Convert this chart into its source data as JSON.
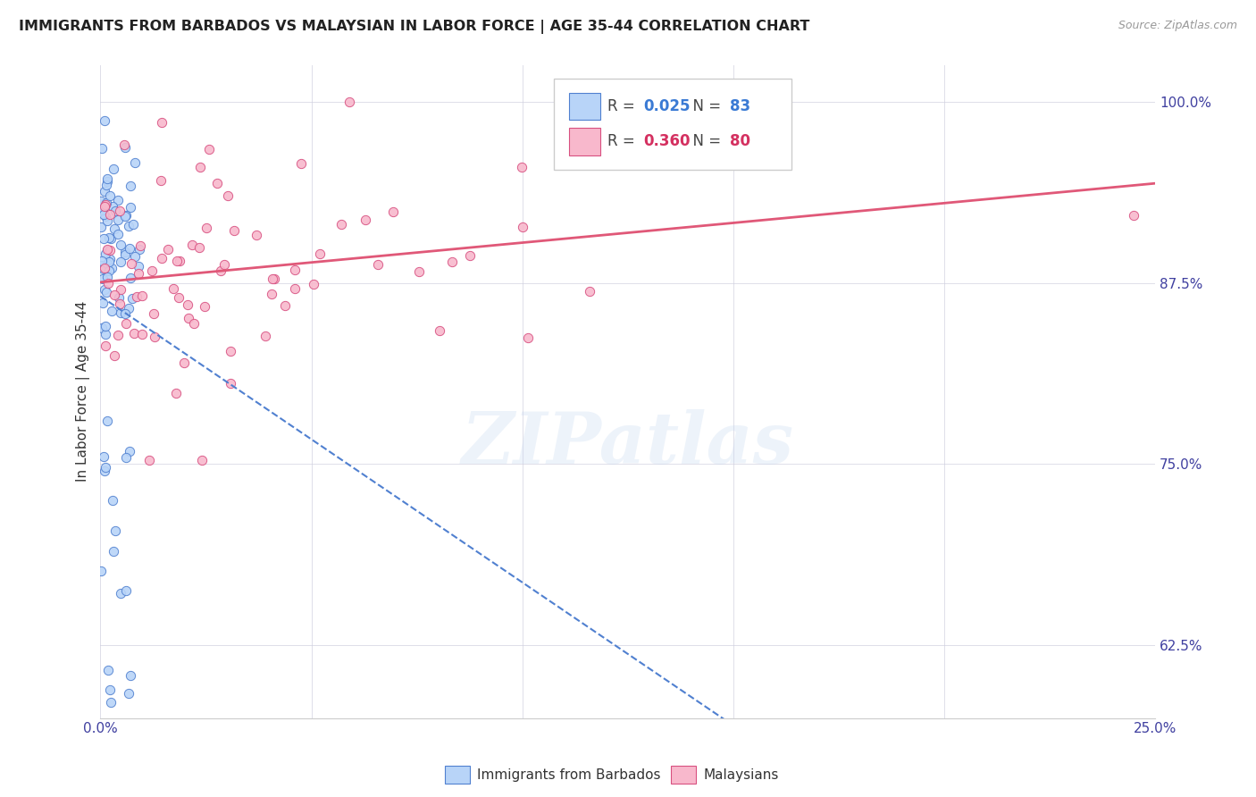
{
  "title": "IMMIGRANTS FROM BARBADOS VS MALAYSIAN IN LABOR FORCE | AGE 35-44 CORRELATION CHART",
  "source": "Source: ZipAtlas.com",
  "ylabel": "In Labor Force | Age 35-44",
  "xlabel_barbados": "Immigrants from Barbados",
  "xlabel_malaysians": "Malaysians",
  "watermark": "ZIPatlas",
  "legend_barbados_R": 0.025,
  "legend_barbados_N": 83,
  "legend_malaysians_R": 0.36,
  "legend_malaysians_N": 80,
  "color_barbados_fill": "#b8d4f8",
  "color_barbados_edge": "#5080d0",
  "color_malaysians_fill": "#f8b8cc",
  "color_malaysians_edge": "#d85080",
  "color_trendline_barbados": "#5080d0",
  "color_trendline_malaysians": "#e05878",
  "xlim": [
    0.0,
    0.25
  ],
  "ylim": [
    0.575,
    1.025
  ],
  "yticks": [
    0.625,
    0.75,
    0.875,
    1.0
  ],
  "ytick_labels": [
    "62.5%",
    "75.0%",
    "87.5%",
    "100.0%"
  ],
  "xticks": [
    0.0,
    0.05,
    0.1,
    0.15,
    0.2,
    0.25
  ],
  "xtick_labels_show": [
    "0.0%",
    "25.0%"
  ]
}
